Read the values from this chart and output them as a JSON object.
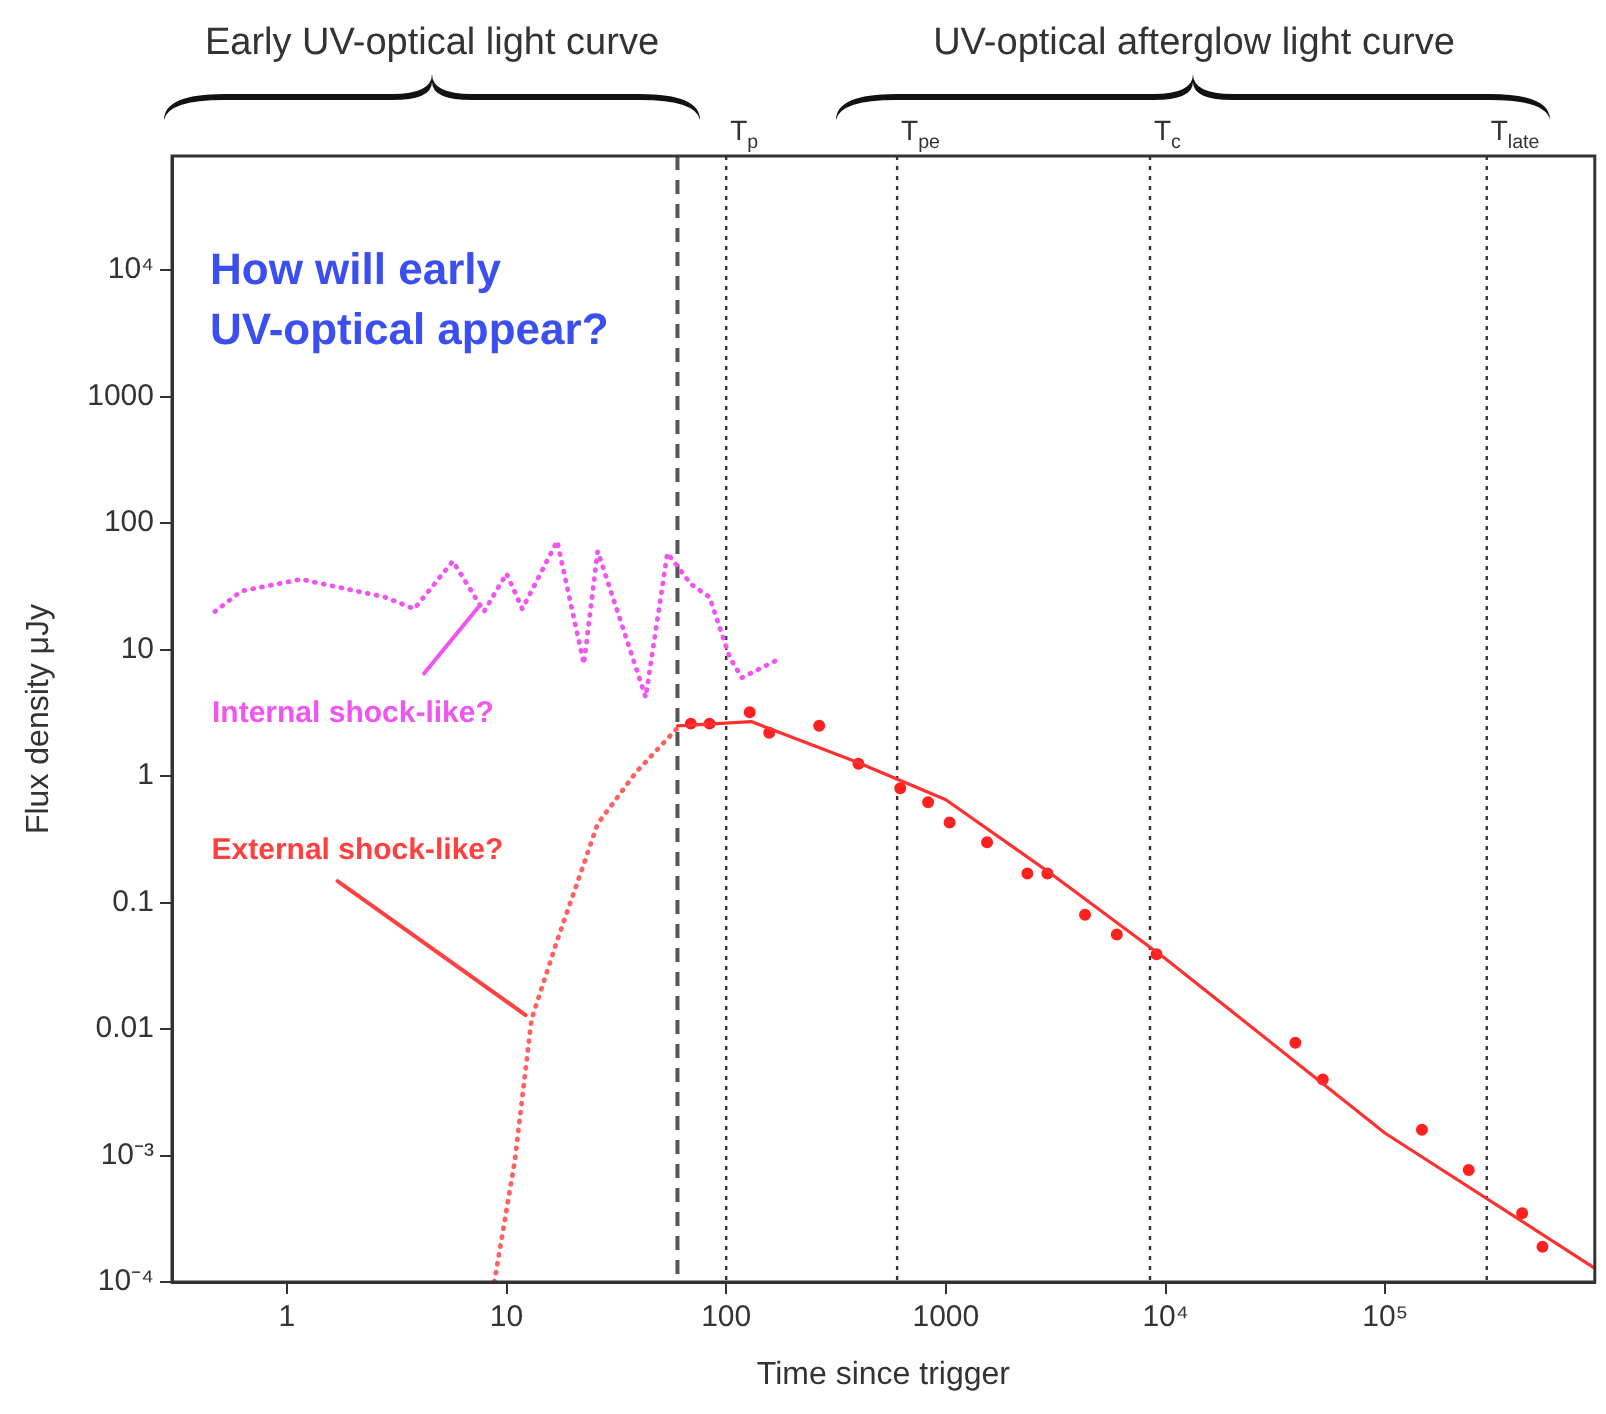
{
  "chart_data": {
    "type": "line",
    "xlabel": "Time since trigger",
    "ylabel": "Flux density μJy",
    "log": "xy",
    "grid": false,
    "legend": false,
    "xlim": [
      0.32,
      900000
    ],
    "ylim": [
      0.0001,
      80000
    ],
    "xticks": [
      1,
      10,
      100,
      1000,
      {
        "value": 10000,
        "label": "10⁴"
      },
      {
        "value": 100000,
        "label": "10⁵"
      }
    ],
    "yticks": [
      {
        "value": 0.0001,
        "label": "10⁻⁴"
      },
      {
        "value": 0.001,
        "label": "10⁻³"
      },
      0.01,
      0.1,
      1,
      10,
      100,
      1000,
      {
        "value": 10000,
        "label": "10⁴"
      }
    ],
    "series": [
      {
        "type": "line",
        "color": "#f055f0",
        "line_style": "dotted",
        "marker": "none",
        "x": [
          0.47,
          0.62,
          1.16,
          2.8,
          3.8,
          5.7,
          7.9,
          10,
          11.8,
          17,
          22.5,
          26,
          43,
          54,
          69,
          84,
          104,
          118,
          178
        ],
        "values": [
          20,
          29,
          36,
          26,
          21,
          50,
          20,
          40,
          21,
          72,
          7.7,
          60,
          4.2,
          58,
          33,
          26,
          8.6,
          6,
          8.6
        ]
      },
      {
        "type": "line",
        "color": "#ff6060",
        "line_style": "dotted",
        "marker": "none",
        "x": [
          8.8,
          10.9,
          13,
          17,
          26,
          39,
          60
        ],
        "values": [
          0.0001,
          0.0009,
          0.012,
          0.05,
          0.42,
          1.08,
          2.4
        ]
      },
      {
        "type": "line",
        "color": "#ff3030",
        "line_style": "solid",
        "marker": "none",
        "x": [
          60,
          130,
          390,
          1000,
          3000,
          10000,
          100000,
          890000
        ],
        "values": [
          2.5,
          2.7,
          1.3,
          0.65,
          0.17,
          0.036,
          0.0015,
          0.00013
        ]
      },
      {
        "type": "scatter",
        "color": "#ff2020",
        "marker": "circle",
        "x": [
          69,
          84,
          128,
          157,
          265,
          400,
          620,
          830,
          1040,
          1540,
          2350,
          2900,
          4300,
          6000,
          9100,
          39000,
          52000,
          147000,
          240000,
          420000,
          520000
        ],
        "values": [
          2.6,
          2.6,
          3.2,
          2.2,
          2.5,
          1.25,
          0.8,
          0.62,
          0.43,
          0.3,
          0.17,
          0.17,
          0.08,
          0.056,
          0.039,
          0.0078,
          0.004,
          0.0016,
          0.00077,
          0.00035,
          0.00019
        ]
      }
    ],
    "ref_lines": [
      {
        "axis": "x",
        "value": 60,
        "line_style": "dashed",
        "color": "#555555"
      },
      {
        "axis": "x",
        "value": 100,
        "label": "T$_{p}$",
        "line_style": "dotted",
        "color": "#333333"
      },
      {
        "axis": "x",
        "value": 600,
        "label": "T$_{pe}$",
        "line_style": "dotted",
        "color": "#333333"
      },
      {
        "axis": "x",
        "value": 8500,
        "label": "T$_{c}$",
        "line_style": "dotted",
        "color": "#333333"
      },
      {
        "axis": "x",
        "value": 290000,
        "label": "T$_{late}$",
        "line_style": "dotted",
        "color": "#333333"
      }
    ],
    "annotations": [
      "Early UV-optical light curve",
      "UV-optical afterglow light curve",
      "How will early UV-optical appear?",
      {
        "text": "Internal shock-like?",
        "x": 7.9,
        "y": 20
      },
      {
        "text": "External shock-like?",
        "x": 13,
        "y": 0.012
      }
    ]
  }
}
